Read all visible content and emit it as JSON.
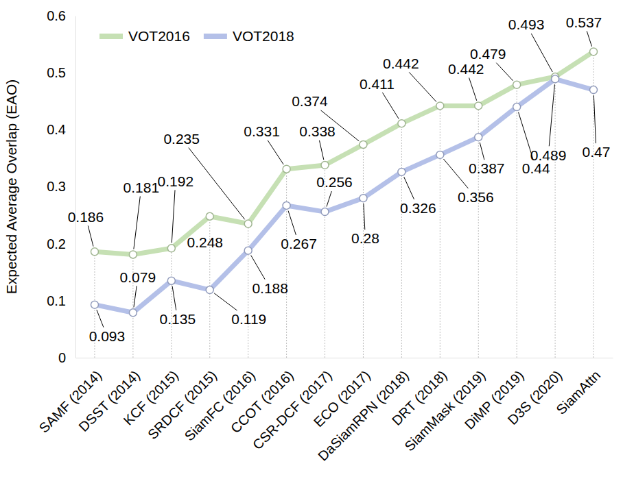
{
  "chart_data": {
    "type": "line",
    "y_label": "Expected Average Overlap (EAO)",
    "categories": [
      "SAMF (2014)",
      "DSST (2014)",
      "KCF (2015)",
      "SRDCF (2015)",
      "SiamFC (2016)",
      "CCOT (2016)",
      "CSR-DCF (2017)",
      "ECO (2017)",
      "DaSiamRPN (2018)",
      "DRT (2018)",
      "SiamMask (2019)",
      "DiMP (2019)",
      "D3S (2020)",
      "SiamAttn"
    ],
    "series": [
      {
        "name": "VOT2016",
        "color": "#c6e0b4",
        "marker": "circle",
        "values": [
          0.186,
          0.181,
          0.192,
          0.248,
          0.235,
          0.331,
          0.338,
          0.374,
          0.411,
          0.442,
          0.442,
          0.479,
          0.493,
          0.537
        ]
      },
      {
        "name": "VOT2018",
        "color": "#b4c0e8",
        "marker": "circle",
        "values": [
          0.093,
          0.079,
          0.135,
          0.119,
          0.188,
          0.267,
          0.256,
          0.28,
          0.326,
          0.356,
          0.387,
          0.44,
          0.489,
          0.47
        ]
      }
    ],
    "ylim": [
      0,
      0.6
    ],
    "yticks": [
      0,
      0.1,
      0.2,
      0.3,
      0.4,
      0.5,
      0.6
    ],
    "grid": true,
    "legend": "upper left",
    "data_labels": true
  }
}
